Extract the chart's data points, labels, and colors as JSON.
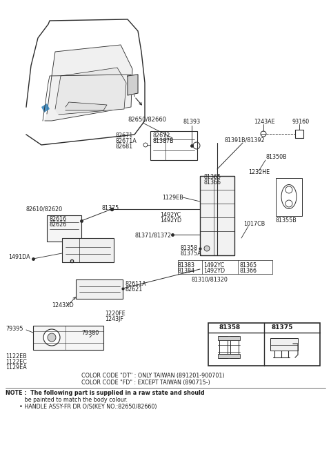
{
  "bg_color": "#ffffff",
  "line_color": "#2a2a2a",
  "text_color": "#1a1a1a",
  "color_notes": [
    "COLOR CODE \"DT\" : ONLY TAIWAN (891201-900701)",
    "COLOR CODE \"FD\" : EXCEPT TAIWAN (890715-)"
  ],
  "note_line1": "NOTE :  The following part is supplied in a raw state and should",
  "note_line2": "           be painted to match the body colour.",
  "note_line3": "        • HANDLE ASSY-FR DR O/S(KEY NO.:82650/82660)"
}
